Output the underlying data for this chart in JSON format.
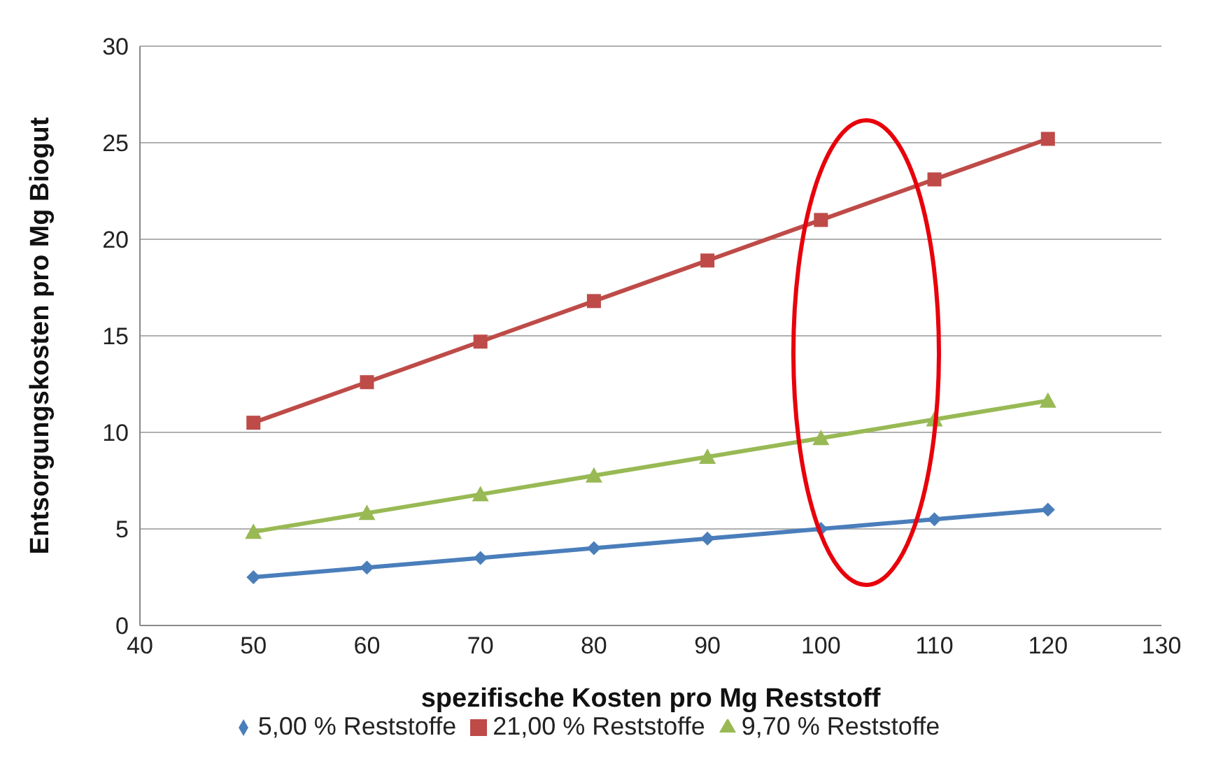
{
  "chart_data": {
    "type": "line",
    "xlabel": "spezifische Kosten pro Mg Reststoff",
    "ylabel": "Entsorgungskosten pro Mg Biogut",
    "x": [
      50,
      60,
      70,
      80,
      90,
      100,
      110,
      120
    ],
    "series": [
      {
        "name": "5,00 % Reststoffe",
        "color": "#4a7ebb",
        "marker": "diamond",
        "values": [
          2.5,
          3,
          3.5,
          4,
          4.5,
          5,
          5.5,
          6
        ]
      },
      {
        "name": "21,00 % Reststoffe",
        "color": "#be4b48",
        "marker": "square",
        "values": [
          10.5,
          12.6,
          14.7,
          16.8,
          18.9,
          21,
          23.1,
          25.2
        ]
      },
      {
        "name": "9,70 % Reststoffe",
        "color": "#98b954",
        "marker": "triangle",
        "values": [
          4.85,
          5.82,
          6.79,
          7.76,
          8.73,
          9.7,
          10.67,
          11.64
        ]
      }
    ],
    "xlim": [
      40,
      130
    ],
    "xticks": [
      40,
      50,
      60,
      70,
      80,
      90,
      100,
      110,
      120,
      130
    ],
    "ylim": [
      0,
      30
    ],
    "yticks": [
      0,
      5,
      10,
      15,
      20,
      25,
      30
    ],
    "grid": "y",
    "legend": "bottom",
    "line_style": "solid"
  }
}
